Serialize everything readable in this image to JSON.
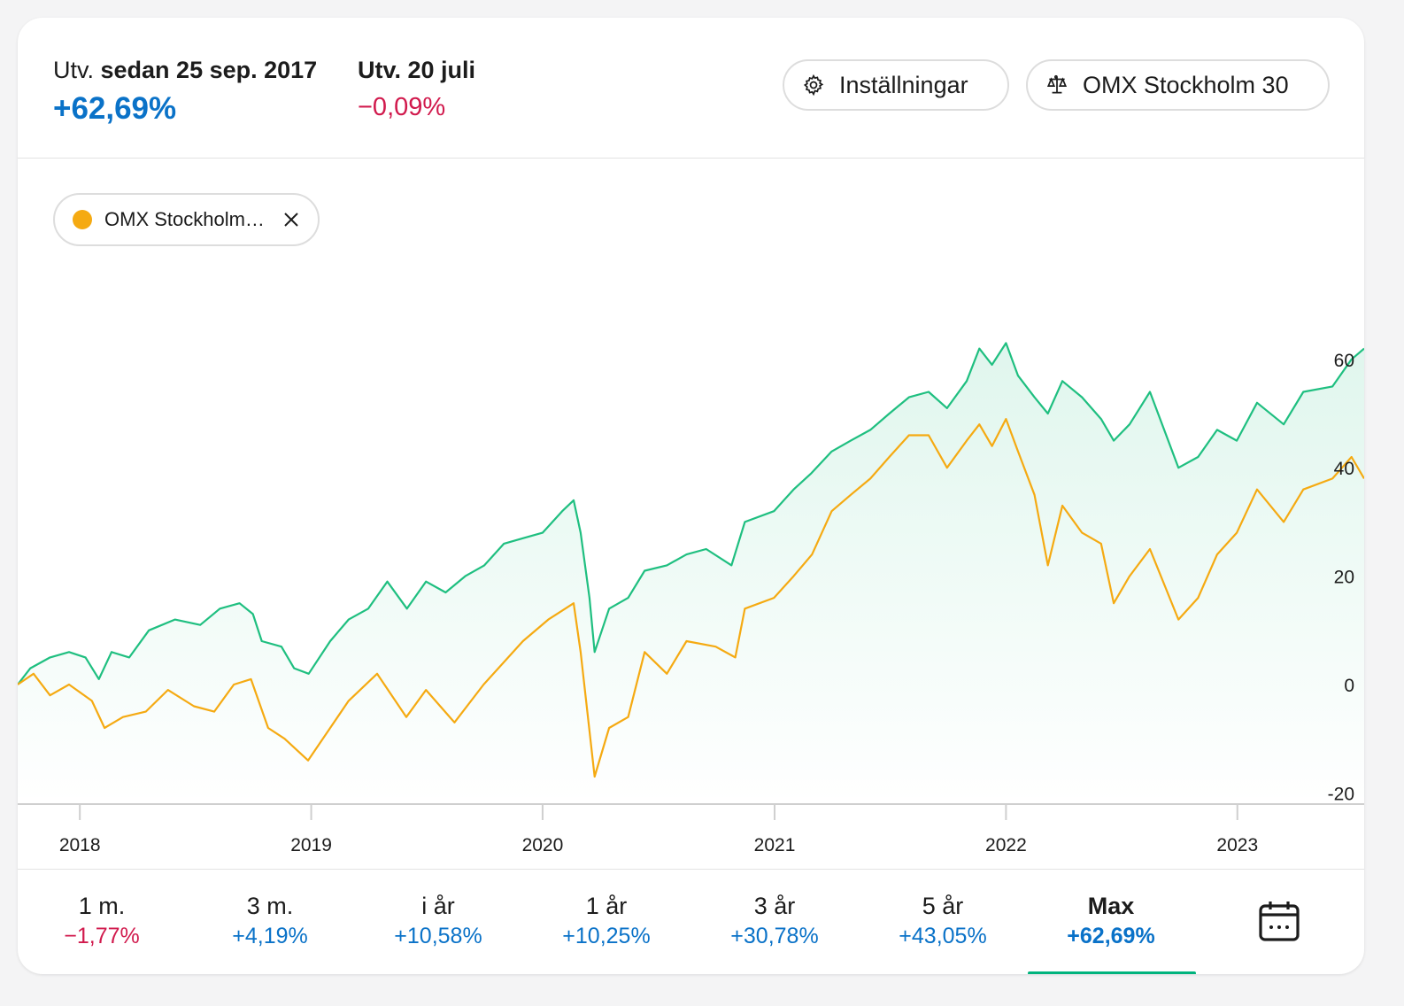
{
  "colors": {
    "positive": "#0a72c8",
    "negative": "#d11a4d",
    "fund_line": "#1fbf80",
    "index_line": "#f5aa12",
    "active_tab": "#00b37d"
  },
  "header": {
    "since_prefix": "Utv.",
    "since_label": "sedan 25 sep. 2017",
    "since_value": "+62,69%",
    "day_label": "Utv. 20 juli",
    "day_value": "−0,09%",
    "settings_label": "Inställningar",
    "settings_icon": "gear-icon",
    "compare_label": "OMX Stockholm 30",
    "compare_icon": "scale-icon"
  },
  "legend": {
    "label": "OMX Stockholm…",
    "close_icon": "close-icon"
  },
  "chart_data": {
    "type": "line",
    "x_range": [
      "2017-09-25",
      "2023-07-20"
    ],
    "ylim": [
      -20,
      65
    ],
    "yticks": [
      60,
      40,
      20,
      0,
      -20
    ],
    "xticks": [
      "2018",
      "2019",
      "2020",
      "2021",
      "2022",
      "2023"
    ],
    "series": [
      {
        "role": "fund",
        "fill": true,
        "points": [
          [
            "2017-09-25",
            0
          ],
          [
            "2017-10-15",
            3
          ],
          [
            "2017-11-15",
            5
          ],
          [
            "2017-12-15",
            6
          ],
          [
            "2018-01-10",
            5
          ],
          [
            "2018-01-31",
            1
          ],
          [
            "2018-02-20",
            6
          ],
          [
            "2018-03-20",
            5
          ],
          [
            "2018-04-20",
            10
          ],
          [
            "2018-05-31",
            12
          ],
          [
            "2018-07-10",
            11
          ],
          [
            "2018-08-10",
            14
          ],
          [
            "2018-09-10",
            15
          ],
          [
            "2018-10-01",
            13
          ],
          [
            "2018-10-15",
            8
          ],
          [
            "2018-11-15",
            7
          ],
          [
            "2018-12-05",
            3
          ],
          [
            "2018-12-28",
            2
          ],
          [
            "2019-01-31",
            8
          ],
          [
            "2019-03-01",
            12
          ],
          [
            "2019-04-01",
            14
          ],
          [
            "2019-05-01",
            19
          ],
          [
            "2019-06-01",
            14
          ],
          [
            "2019-07-01",
            19
          ],
          [
            "2019-08-01",
            17
          ],
          [
            "2019-09-01",
            20
          ],
          [
            "2019-10-01",
            22
          ],
          [
            "2019-11-01",
            26
          ],
          [
            "2019-12-01",
            27
          ],
          [
            "2020-01-01",
            28
          ],
          [
            "2020-02-01",
            32
          ],
          [
            "2020-02-19",
            34
          ],
          [
            "2020-03-01",
            28
          ],
          [
            "2020-03-15",
            16
          ],
          [
            "2020-03-23",
            6
          ],
          [
            "2020-04-15",
            14
          ],
          [
            "2020-05-15",
            16
          ],
          [
            "2020-06-10",
            21
          ],
          [
            "2020-07-15",
            22
          ],
          [
            "2020-08-15",
            24
          ],
          [
            "2020-09-15",
            25
          ],
          [
            "2020-10-25",
            22
          ],
          [
            "2020-11-15",
            30
          ],
          [
            "2020-12-31",
            32
          ],
          [
            "2021-01-31",
            36
          ],
          [
            "2021-02-28",
            39
          ],
          [
            "2021-04-01",
            43
          ],
          [
            "2021-05-01",
            45
          ],
          [
            "2021-06-01",
            47
          ],
          [
            "2021-07-01",
            50
          ],
          [
            "2021-08-01",
            53
          ],
          [
            "2021-09-01",
            54
          ],
          [
            "2021-09-30",
            51
          ],
          [
            "2021-10-31",
            56
          ],
          [
            "2021-11-20",
            62
          ],
          [
            "2021-12-10",
            59
          ],
          [
            "2022-01-01",
            63
          ],
          [
            "2022-01-20",
            57
          ],
          [
            "2022-02-15",
            53
          ],
          [
            "2022-03-08",
            50
          ],
          [
            "2022-03-31",
            56
          ],
          [
            "2022-05-01",
            53
          ],
          [
            "2022-05-31",
            49
          ],
          [
            "2022-06-20",
            45
          ],
          [
            "2022-07-15",
            48
          ],
          [
            "2022-08-16",
            54
          ],
          [
            "2022-09-30",
            40
          ],
          [
            "2022-10-31",
            42
          ],
          [
            "2022-11-30",
            47
          ],
          [
            "2022-12-31",
            45
          ],
          [
            "2023-02-01",
            52
          ],
          [
            "2023-03-15",
            48
          ],
          [
            "2023-04-15",
            54
          ],
          [
            "2023-05-31",
            55
          ],
          [
            "2023-06-30",
            60
          ],
          [
            "2023-07-20",
            62
          ]
        ]
      },
      {
        "role": "index",
        "fill": false,
        "points": [
          [
            "2017-09-25",
            0
          ],
          [
            "2017-10-20",
            2
          ],
          [
            "2017-11-15",
            -2
          ],
          [
            "2017-12-15",
            0
          ],
          [
            "2018-01-20",
            -3
          ],
          [
            "2018-02-09",
            -8
          ],
          [
            "2018-03-10",
            -6
          ],
          [
            "2018-04-15",
            -5
          ],
          [
            "2018-05-20",
            -1
          ],
          [
            "2018-06-30",
            -4
          ],
          [
            "2018-08-01",
            -5
          ],
          [
            "2018-09-01",
            0
          ],
          [
            "2018-09-28",
            1
          ],
          [
            "2018-10-25",
            -8
          ],
          [
            "2018-11-20",
            -10
          ],
          [
            "2018-12-27",
            -14
          ],
          [
            "2019-01-31",
            -8
          ],
          [
            "2019-03-01",
            -3
          ],
          [
            "2019-04-15",
            2
          ],
          [
            "2019-05-31",
            -6
          ],
          [
            "2019-07-01",
            -1
          ],
          [
            "2019-08-15",
            -7
          ],
          [
            "2019-09-30",
            0
          ],
          [
            "2019-10-31",
            4
          ],
          [
            "2019-12-01",
            8
          ],
          [
            "2020-01-10",
            12
          ],
          [
            "2020-02-19",
            15
          ],
          [
            "2020-03-01",
            6
          ],
          [
            "2020-03-23",
            -17
          ],
          [
            "2020-04-15",
            -8
          ],
          [
            "2020-05-15",
            -6
          ],
          [
            "2020-06-10",
            6
          ],
          [
            "2020-07-15",
            2
          ],
          [
            "2020-08-15",
            8
          ],
          [
            "2020-09-30",
            7
          ],
          [
            "2020-10-31",
            5
          ],
          [
            "2020-11-15",
            14
          ],
          [
            "2020-12-31",
            16
          ],
          [
            "2021-01-31",
            20
          ],
          [
            "2021-03-01",
            24
          ],
          [
            "2021-04-01",
            32
          ],
          [
            "2021-05-01",
            35
          ],
          [
            "2021-06-01",
            38
          ],
          [
            "2021-07-01",
            42
          ],
          [
            "2021-08-01",
            46
          ],
          [
            "2021-09-01",
            46
          ],
          [
            "2021-09-30",
            40
          ],
          [
            "2021-10-31",
            45
          ],
          [
            "2021-11-20",
            48
          ],
          [
            "2021-12-10",
            44
          ],
          [
            "2022-01-01",
            49
          ],
          [
            "2022-01-20",
            43
          ],
          [
            "2022-02-15",
            35
          ],
          [
            "2022-03-08",
            22
          ],
          [
            "2022-03-31",
            33
          ],
          [
            "2022-05-01",
            28
          ],
          [
            "2022-05-31",
            26
          ],
          [
            "2022-06-20",
            15
          ],
          [
            "2022-07-15",
            20
          ],
          [
            "2022-08-16",
            25
          ],
          [
            "2022-09-30",
            12
          ],
          [
            "2022-10-31",
            16
          ],
          [
            "2022-11-30",
            24
          ],
          [
            "2022-12-31",
            28
          ],
          [
            "2023-02-01",
            36
          ],
          [
            "2023-03-15",
            30
          ],
          [
            "2023-04-15",
            36
          ],
          [
            "2023-05-31",
            38
          ],
          [
            "2023-06-30",
            42
          ],
          [
            "2023-07-20",
            38
          ]
        ]
      }
    ]
  },
  "periods": [
    {
      "label": "1 m.",
      "value": "−1,77%",
      "sign": "negative"
    },
    {
      "label": "3 m.",
      "value": "+4,19%",
      "sign": "positive"
    },
    {
      "label": "i år",
      "value": "+10,58%",
      "sign": "positive"
    },
    {
      "label": "1 år",
      "value": "+10,25%",
      "sign": "positive"
    },
    {
      "label": "3 år",
      "value": "+30,78%",
      "sign": "positive"
    },
    {
      "label": "5 år",
      "value": "+43,05%",
      "sign": "positive"
    },
    {
      "label": "Max",
      "value": "+62,69%",
      "sign": "positive",
      "active": true
    }
  ],
  "calendar_icon": "calendar-icon"
}
